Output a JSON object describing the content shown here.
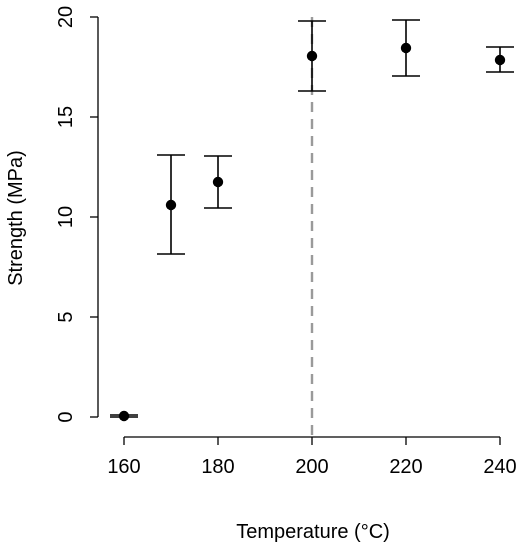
{
  "chart_data": {
    "type": "scatter",
    "xlabel": "Temperature (°C)",
    "ylabel": "Strength (MPa)",
    "xlim": [
      160,
      240
    ],
    "ylim": [
      0,
      20
    ],
    "x_ticks": [
      160,
      180,
      200,
      220,
      240
    ],
    "y_ticks": [
      0,
      5,
      10,
      15,
      20
    ],
    "grid": false,
    "legend": "none",
    "series": [
      {
        "x": [
          160,
          170,
          180,
          200,
          220,
          240
        ],
        "y": [
          0.05,
          10.6,
          11.75,
          18.05,
          18.45,
          17.85
        ],
        "error_low": [
          0.0,
          8.15,
          10.45,
          16.3,
          17.05,
          17.25
        ],
        "error_high": [
          0.1,
          13.1,
          13.05,
          19.8,
          19.85,
          18.5
        ]
      }
    ],
    "reference_line": {
      "orientation": "vertical",
      "x": 200,
      "style": "dashed",
      "color": "#9a9a9a"
    },
    "marker_color": "#000000"
  }
}
